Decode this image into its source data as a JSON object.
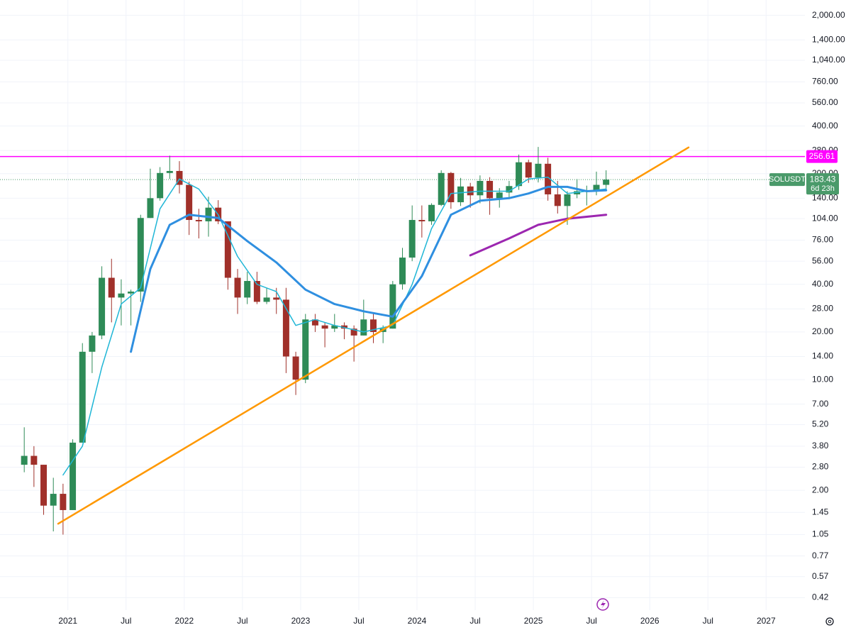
{
  "chart_data": {
    "type": "candlestick",
    "x": [
      "2020-08",
      "2020-09",
      "2020-10",
      "2020-11",
      "2020-12",
      "2021-01",
      "2021-02",
      "2021-03",
      "2021-04",
      "2021-05",
      "2021-06",
      "2021-07",
      "2021-08",
      "2021-09",
      "2021-10",
      "2021-11",
      "2021-12",
      "2022-01",
      "2022-02",
      "2022-03",
      "2022-04",
      "2022-05",
      "2022-06",
      "2022-07",
      "2022-08",
      "2022-09",
      "2022-10",
      "2022-11",
      "2022-12",
      "2023-01",
      "2023-02",
      "2023-03",
      "2023-04",
      "2023-05",
      "2023-06",
      "2023-07",
      "2023-08",
      "2023-09",
      "2023-10",
      "2023-11",
      "2023-12",
      "2024-01",
      "2024-02",
      "2024-03",
      "2024-04",
      "2024-05",
      "2024-06",
      "2024-07",
      "2024-08",
      "2024-09",
      "2024-10",
      "2024-11",
      "2024-12",
      "2025-01",
      "2025-02",
      "2025-03",
      "2025-04",
      "2025-05",
      "2025-06",
      "2025-07",
      "2025-08"
    ],
    "open": [
      2.9,
      3.3,
      2.9,
      1.6,
      1.9,
      1.5,
      4.0,
      15,
      19,
      44,
      33,
      35,
      36,
      105,
      140,
      202,
      208,
      170,
      102,
      100,
      122,
      100,
      44,
      33,
      42,
      31,
      33,
      32,
      14,
      10,
      24,
      22,
      21,
      22,
      21,
      19,
      24,
      20,
      21,
      40,
      59,
      102,
      100,
      127,
      202,
      132,
      166,
      146,
      180,
      140,
      152,
      167,
      236,
      189,
      231,
      148,
      125,
      148,
      155,
      155,
      170
    ],
    "high": [
      5.0,
      3.8,
      2.9,
      2.4,
      2.2,
      4.2,
      17,
      20,
      52,
      58,
      43,
      37,
      110,
      215,
      220,
      260,
      240,
      178,
      120,
      143,
      136,
      100,
      50,
      48,
      48,
      38,
      38,
      38,
      15,
      26,
      26,
      23,
      26,
      23,
      22,
      32,
      26,
      22,
      42,
      68,
      126,
      126,
      130,
      210,
      205,
      188,
      175,
      195,
      190,
      162,
      180,
      264,
      245,
      295,
      252,
      180,
      155,
      185,
      168,
      206,
      210
    ],
    "low": [
      2.6,
      2.1,
      1.4,
      1.1,
      1.05,
      1.5,
      4.0,
      11,
      18,
      23,
      22,
      22,
      31,
      105,
      135,
      185,
      150,
      82,
      78,
      80,
      96,
      37,
      26,
      30,
      30,
      30,
      26,
      11,
      8,
      9.5,
      20,
      16,
      20,
      18,
      13,
      19,
      17,
      17,
      21,
      37,
      56,
      79,
      95,
      125,
      120,
      125,
      122,
      130,
      110,
      122,
      138,
      158,
      175,
      176,
      135,
      112,
      95,
      140,
      126,
      146,
      155
    ],
    "close": [
      3.3,
      2.9,
      1.6,
      1.9,
      1.5,
      4.0,
      15,
      19,
      44,
      33,
      35,
      36,
      105,
      140,
      202,
      208,
      170,
      102,
      100,
      122,
      100,
      44,
      33,
      42,
      31,
      33,
      32,
      14,
      10,
      24,
      22,
      21,
      22,
      21,
      19,
      24,
      20,
      21,
      40,
      59,
      102,
      100,
      127,
      202,
      132,
      166,
      146,
      180,
      140,
      152,
      167,
      236,
      189,
      231,
      148,
      125,
      148,
      155,
      155,
      170,
      183.43
    ],
    "up_color": "#2e8b57",
    "down_color": "#a0302a",
    "log_scale": true,
    "ylim": [
      0.35,
      2500
    ],
    "yticks": [
      {
        "value": 2000,
        "label": "2,000.00"
      },
      {
        "value": 1400,
        "label": "1,400.00"
      },
      {
        "value": 1040,
        "label": "1,040.00"
      },
      {
        "value": 760,
        "label": "760.00"
      },
      {
        "value": 560,
        "label": "560.00"
      },
      {
        "value": 400,
        "label": "400.00"
      },
      {
        "value": 280,
        "label": "280.00"
      },
      {
        "value": 200,
        "label": "200.00"
      },
      {
        "value": 140,
        "label": "140.00"
      },
      {
        "value": 104,
        "label": "104.00"
      },
      {
        "value": 76,
        "label": "76.00"
      },
      {
        "value": 56,
        "label": "56.00"
      },
      {
        "value": 40,
        "label": "40.00"
      },
      {
        "value": 28,
        "label": "28.00"
      },
      {
        "value": 20,
        "label": "20.00"
      },
      {
        "value": 14,
        "label": "14.00"
      },
      {
        "value": 10,
        "label": "10.00"
      },
      {
        "value": 7,
        "label": "7.00"
      },
      {
        "value": 5.2,
        "label": "5.20"
      },
      {
        "value": 3.8,
        "label": "3.80"
      },
      {
        "value": 2.8,
        "label": "2.80"
      },
      {
        "value": 2,
        "label": "2.00"
      },
      {
        "value": 1.45,
        "label": "1.45"
      },
      {
        "value": 1.05,
        "label": "1.05"
      },
      {
        "value": 0.77,
        "label": "0.77"
      },
      {
        "value": 0.57,
        "label": "0.57"
      },
      {
        "value": 0.42,
        "label": "0.42"
      }
    ],
    "xlim": [
      "2020-06",
      "2027-05"
    ],
    "xticks": [
      {
        "value": "2021-01",
        "label": "2021"
      },
      {
        "value": "2021-07",
        "label": "Jul"
      },
      {
        "value": "2022-01",
        "label": "2022"
      },
      {
        "value": "2022-07",
        "label": "Jul"
      },
      {
        "value": "2023-01",
        "label": "2023"
      },
      {
        "value": "2023-07",
        "label": "Jul"
      },
      {
        "value": "2024-01",
        "label": "2024"
      },
      {
        "value": "2024-07",
        "label": "Jul"
      },
      {
        "value": "2025-01",
        "label": "2025"
      },
      {
        "value": "2025-07",
        "label": "Jul"
      },
      {
        "value": "2026-01",
        "label": "2026"
      },
      {
        "value": "2026-07",
        "label": "Jul"
      },
      {
        "value": "2027-01",
        "label": "2027"
      }
    ],
    "grid": true,
    "lines": [
      {
        "color": "#1fb6d6",
        "width": 1.5,
        "x": [
          "2020-12",
          "2021-02",
          "2021-04",
          "2021-06",
          "2021-08",
          "2021-10",
          "2021-12",
          "2022-02",
          "2022-04",
          "2022-06",
          "2022-08",
          "2022-10",
          "2022-12",
          "2023-02",
          "2023-04",
          "2023-07",
          "2023-10",
          "2023-12",
          "2024-02",
          "2024-04",
          "2024-07",
          "2024-10",
          "2024-12",
          "2025-02",
          "2025-04",
          "2025-06",
          "2025-08"
        ],
        "values": [
          2.5,
          3.8,
          12,
          30,
          38,
          120,
          185,
          160,
          110,
          60,
          40,
          36,
          22,
          24,
          22,
          20,
          22,
          40,
          90,
          150,
          155,
          155,
          185,
          190,
          150,
          155,
          160
        ]
      },
      {
        "color": "#2f8fe0",
        "width": 3,
        "x": [
          "2021-07",
          "2021-09",
          "2021-11",
          "2022-01",
          "2022-04",
          "2022-07",
          "2022-10",
          "2023-01",
          "2023-04",
          "2023-07",
          "2023-10",
          "2024-01",
          "2024-04",
          "2024-07",
          "2024-10",
          "2024-12",
          "2025-02",
          "2025-04",
          "2025-06",
          "2025-08"
        ],
        "values": [
          15,
          50,
          95,
          110,
          105,
          75,
          55,
          37,
          30,
          27,
          25,
          45,
          110,
          135,
          140,
          150,
          165,
          165,
          155,
          157
        ]
      },
      {
        "color": "#9c27b0",
        "width": 3,
        "x": [
          "2024-06",
          "2024-10",
          "2025-01",
          "2025-04",
          "2025-08"
        ],
        "values": [
          61,
          78,
          95,
          104,
          110
        ]
      }
    ],
    "trendline": {
      "color": "#ff9800",
      "x": [
        "2020-12",
        "2026-05"
      ],
      "values": [
        1.23,
        293
      ]
    },
    "level": {
      "value": 256.61,
      "color": "#ff00ff"
    },
    "last": {
      "symbol": "SOLUSDT",
      "value": 183.43,
      "countdown": "6d 23h",
      "color": "#4a9a6a"
    }
  }
}
